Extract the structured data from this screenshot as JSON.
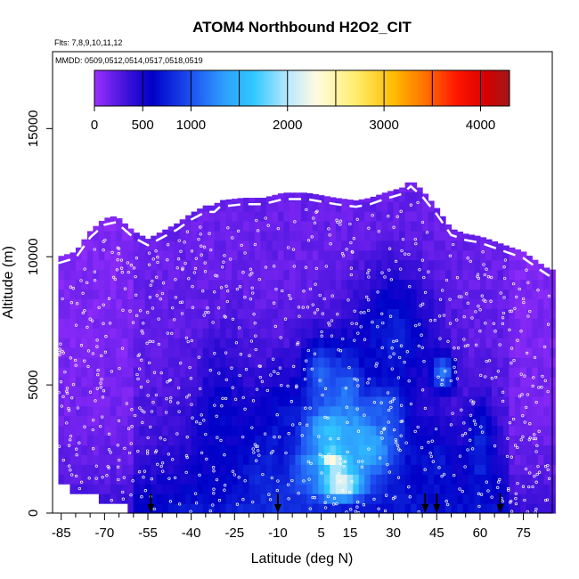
{
  "chart_data": {
    "type": "heatmap",
    "title": "ATOM4 Northbound H2O2_CIT",
    "flights_label": "Flts: 7,8,9,10,11,12",
    "dates_label": "MMDD: 0509,0512,0514,0517,0518,0519",
    "xlabel": "Latitude (deg N)",
    "ylabel": "Altitude (m)",
    "xlim": [
      -88,
      85
    ],
    "ylim": [
      0,
      18000
    ],
    "x_ticks": [
      -85,
      -70,
      -55,
      -40,
      -25,
      -10,
      5,
      15,
      30,
      45,
      60,
      75
    ],
    "x_minor_ticks": [
      -80,
      -75,
      -65,
      -60,
      -50,
      -45,
      -35,
      -30,
      -20,
      -15,
      -5,
      0,
      10,
      20,
      25,
      35,
      40,
      50,
      55,
      65,
      70,
      80
    ],
    "x_tick_labels": [
      "-85",
      "-70",
      "-55",
      "-40",
      "-25",
      "-10",
      "5",
      "15",
      "30",
      "45",
      "60",
      "75"
    ],
    "y_ticks": [
      0,
      5000,
      10000,
      15000
    ],
    "y_tick_labels": [
      "0",
      "5000",
      "10000",
      "15000"
    ],
    "colorbar": {
      "min": 0,
      "max": 4300,
      "ticks": [
        0,
        500,
        1000,
        2000,
        3000,
        4000
      ],
      "tick_labels": [
        "0",
        "500",
        "1000",
        "2000",
        "3000",
        "4000"
      ],
      "dividers": [
        500,
        1000,
        1500,
        2000,
        2500,
        3000,
        3500,
        4000
      ],
      "stops": [
        {
          "v": 0,
          "c": "#9b30ff"
        },
        {
          "v": 350,
          "c": "#3a10d8"
        },
        {
          "v": 600,
          "c": "#0000c8"
        },
        {
          "v": 1000,
          "c": "#1e50f0"
        },
        {
          "v": 1350,
          "c": "#2ea0ff"
        },
        {
          "v": 1650,
          "c": "#30c8ff"
        },
        {
          "v": 2000,
          "c": "#b8e8ff"
        },
        {
          "v": 2300,
          "c": "#fffbe0"
        },
        {
          "v": 2700,
          "c": "#ffee70"
        },
        {
          "v": 3100,
          "c": "#ffbb00"
        },
        {
          "v": 3400,
          "c": "#ff7700"
        },
        {
          "v": 3750,
          "c": "#ff1800"
        },
        {
          "v": 4050,
          "c": "#d80000"
        },
        {
          "v": 4300,
          "c": "#a01818"
        }
      ]
    },
    "flight_top_profile": [
      [
        -86,
        10000
      ],
      [
        -80,
        10200
      ],
      [
        -75,
        11000
      ],
      [
        -70,
        11500
      ],
      [
        -66,
        11600
      ],
      [
        -60,
        11000
      ],
      [
        -55,
        10700
      ],
      [
        -50,
        11000
      ],
      [
        -45,
        11300
      ],
      [
        -40,
        11700
      ],
      [
        -35,
        12000
      ],
      [
        -32,
        12000
      ],
      [
        -30,
        12200
      ],
      [
        -22,
        12300
      ],
      [
        -15,
        12300
      ],
      [
        -8,
        12500
      ],
      [
        0,
        12500
      ],
      [
        10,
        12300
      ],
      [
        17,
        12200
      ],
      [
        22,
        12300
      ],
      [
        27,
        12500
      ],
      [
        33,
        12700
      ],
      [
        36,
        13000
      ],
      [
        40,
        12600
      ],
      [
        45,
        11900
      ],
      [
        50,
        11100
      ],
      [
        55,
        10900
      ],
      [
        60,
        10800
      ],
      [
        65,
        10600
      ],
      [
        70,
        10400
      ],
      [
        75,
        10200
      ],
      [
        80,
        9800
      ],
      [
        84,
        9500
      ]
    ],
    "flight_bottom_profile": [
      [
        -86,
        1200
      ],
      [
        -80,
        1100
      ],
      [
        -75,
        900
      ],
      [
        -70,
        700
      ],
      [
        -65,
        500
      ],
      [
        -60,
        300
      ],
      [
        -55,
        200
      ],
      [
        -45,
        200
      ],
      [
        -30,
        200
      ],
      [
        -15,
        200
      ],
      [
        0,
        200
      ],
      [
        15,
        200
      ],
      [
        30,
        200
      ],
      [
        45,
        200
      ],
      [
        60,
        200
      ],
      [
        70,
        200
      ],
      [
        80,
        200
      ],
      [
        84,
        200
      ]
    ],
    "enhancements": [
      {
        "lat": 10,
        "alt": 2100,
        "dlat": 5,
        "dalt": 600,
        "value": 3300
      },
      {
        "lat": 8,
        "alt": 2100,
        "dlat": 3,
        "dalt": 200,
        "value": 4200
      },
      {
        "lat": 12,
        "alt": 1200,
        "dlat": 7,
        "dalt": 700,
        "value": 2500
      },
      {
        "lat": 11,
        "alt": 3300,
        "dlat": 10,
        "dalt": 900,
        "value": 2100
      },
      {
        "lat": 20,
        "alt": 2600,
        "dlat": 12,
        "dalt": 1200,
        "value": 1500
      },
      {
        "lat": 0,
        "alt": 2000,
        "dlat": 8,
        "dalt": 1000,
        "value": 1300
      },
      {
        "lat": 14,
        "alt": 4500,
        "dlat": 6,
        "dalt": 1800,
        "value": 1250
      },
      {
        "lat": 27,
        "alt": 4200,
        "dlat": 7,
        "dalt": 900,
        "value": 1200
      },
      {
        "lat": 47,
        "alt": 5500,
        "dlat": 4,
        "dalt": 700,
        "value": 1300
      },
      {
        "lat": 5,
        "alt": 5300,
        "dlat": 6,
        "dalt": 1500,
        "value": 1100
      },
      {
        "lat": -15,
        "alt": 1500,
        "dlat": 5,
        "dalt": 1000,
        "value": 800
      },
      {
        "lat": -8,
        "alt": 3000,
        "dlat": 6,
        "dalt": 2000,
        "value": 700
      },
      {
        "lat": 60,
        "alt": 2500,
        "dlat": 5,
        "dalt": 2000,
        "value": 800
      },
      {
        "lat": 30,
        "alt": 7000,
        "dlat": 14,
        "dalt": 2500,
        "value": 750
      },
      {
        "lat": -30,
        "alt": 3500,
        "dlat": 8,
        "dalt": 3000,
        "value": 600
      },
      {
        "lat": 45,
        "alt": 2000,
        "dlat": 8,
        "dalt": 1500,
        "value": 700
      },
      {
        "lat": 20,
        "alt": 200,
        "dlat": 25,
        "dalt": 350,
        "value": 700
      }
    ],
    "profile_markers_lat": [
      -54,
      -10,
      41,
      45,
      67
    ],
    "grid": false
  }
}
